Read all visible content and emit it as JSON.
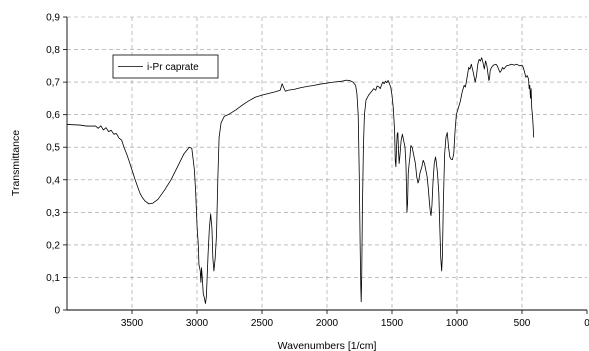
{
  "chart_data": {
    "type": "line",
    "xlabel": "Wavenumbers [1/cm]",
    "ylabel": "Transmittance",
    "xlim": [
      4000,
      0
    ],
    "ylim": [
      0,
      0.9
    ],
    "x_reversed": true,
    "grid": true,
    "legend_position": "top-left",
    "x_ticks": [
      {
        "value": 3500,
        "label": "3500"
      },
      {
        "value": 3000,
        "label": "3000"
      },
      {
        "value": 2500,
        "label": "2500"
      },
      {
        "value": 2000,
        "label": "2000"
      },
      {
        "value": 1500,
        "label": "1500"
      },
      {
        "value": 1000,
        "label": "1000"
      },
      {
        "value": 500,
        "label": "500"
      },
      {
        "value": 0,
        "label": "0"
      }
    ],
    "y_ticks": [
      {
        "value": 0,
        "label": "0"
      },
      {
        "value": 0.1,
        "label": "0,1"
      },
      {
        "value": 0.2,
        "label": "0,2"
      },
      {
        "value": 0.3,
        "label": "0,3"
      },
      {
        "value": 0.4,
        "label": "0,4"
      },
      {
        "value": 0.5,
        "label": "0,5"
      },
      {
        "value": 0.6,
        "label": "0,6"
      },
      {
        "value": 0.7,
        "label": "0,7"
      },
      {
        "value": 0.8,
        "label": "0,8"
      },
      {
        "value": 0.9,
        "label": "0,9"
      }
    ],
    "series": [
      {
        "name": "i-Pr caprate",
        "color": "#000000",
        "points": [
          [
            4000,
            0.57
          ],
          [
            3900,
            0.568
          ],
          [
            3850,
            0.565
          ],
          [
            3780,
            0.565
          ],
          [
            3760,
            0.558
          ],
          [
            3740,
            0.566
          ],
          [
            3720,
            0.553
          ],
          [
            3700,
            0.56
          ],
          [
            3680,
            0.548
          ],
          [
            3660,
            0.552
          ],
          [
            3640,
            0.54
          ],
          [
            3620,
            0.542
          ],
          [
            3600,
            0.528
          ],
          [
            3580,
            0.522
          ],
          [
            3560,
            0.498
          ],
          [
            3540,
            0.478
          ],
          [
            3520,
            0.455
          ],
          [
            3500,
            0.43
          ],
          [
            3480,
            0.405
          ],
          [
            3460,
            0.382
          ],
          [
            3440,
            0.36
          ],
          [
            3420,
            0.345
          ],
          [
            3400,
            0.335
          ],
          [
            3370,
            0.326
          ],
          [
            3340,
            0.328
          ],
          [
            3300,
            0.34
          ],
          [
            3250,
            0.368
          ],
          [
            3200,
            0.4
          ],
          [
            3150,
            0.44
          ],
          [
            3100,
            0.48
          ],
          [
            3060,
            0.5
          ],
          [
            3040,
            0.497
          ],
          [
            3020,
            0.43
          ],
          [
            3010,
            0.36
          ],
          [
            3000,
            0.26
          ],
          [
            2990,
            0.2
          ],
          [
            2985,
            0.14
          ],
          [
            2975,
            0.12
          ],
          [
            2970,
            0.085
          ],
          [
            2965,
            0.13
          ],
          [
            2958,
            0.09
          ],
          [
            2952,
            0.05
          ],
          [
            2945,
            0.04
          ],
          [
            2935,
            0.02
          ],
          [
            2928,
            0.04
          ],
          [
            2915,
            0.17
          ],
          [
            2905,
            0.25
          ],
          [
            2895,
            0.295
          ],
          [
            2885,
            0.25
          ],
          [
            2878,
            0.16
          ],
          [
            2870,
            0.12
          ],
          [
            2860,
            0.16
          ],
          [
            2850,
            0.23
          ],
          [
            2840,
            0.4
          ],
          [
            2830,
            0.53
          ],
          [
            2815,
            0.575
          ],
          [
            2790,
            0.595
          ],
          [
            2760,
            0.6
          ],
          [
            2700,
            0.615
          ],
          [
            2650,
            0.63
          ],
          [
            2600,
            0.643
          ],
          [
            2550,
            0.654
          ],
          [
            2500,
            0.66
          ],
          [
            2450,
            0.665
          ],
          [
            2400,
            0.67
          ],
          [
            2360,
            0.675
          ],
          [
            2345,
            0.695
          ],
          [
            2335,
            0.685
          ],
          [
            2320,
            0.672
          ],
          [
            2300,
            0.675
          ],
          [
            2250,
            0.678
          ],
          [
            2200,
            0.683
          ],
          [
            2150,
            0.687
          ],
          [
            2100,
            0.69
          ],
          [
            2050,
            0.694
          ],
          [
            2000,
            0.697
          ],
          [
            1950,
            0.7
          ],
          [
            1900,
            0.702
          ],
          [
            1870,
            0.704
          ],
          [
            1850,
            0.706
          ],
          [
            1820,
            0.704
          ],
          [
            1800,
            0.7
          ],
          [
            1780,
            0.69
          ],
          [
            1770,
            0.665
          ],
          [
            1760,
            0.6
          ],
          [
            1752,
            0.42
          ],
          [
            1745,
            0.2
          ],
          [
            1740,
            0.07
          ],
          [
            1737,
            0.025
          ],
          [
            1733,
            0.1
          ],
          [
            1728,
            0.3
          ],
          [
            1720,
            0.5
          ],
          [
            1712,
            0.6
          ],
          [
            1700,
            0.645
          ],
          [
            1680,
            0.66
          ],
          [
            1660,
            0.67
          ],
          [
            1640,
            0.68
          ],
          [
            1625,
            0.675
          ],
          [
            1615,
            0.688
          ],
          [
            1600,
            0.685
          ],
          [
            1590,
            0.68
          ],
          [
            1580,
            0.692
          ],
          [
            1570,
            0.7
          ],
          [
            1560,
            0.695
          ],
          [
            1550,
            0.703
          ],
          [
            1540,
            0.698
          ],
          [
            1530,
            0.705
          ],
          [
            1520,
            0.695
          ],
          [
            1510,
            0.685
          ],
          [
            1500,
            0.66
          ],
          [
            1490,
            0.62
          ],
          [
            1480,
            0.55
          ],
          [
            1475,
            0.46
          ],
          [
            1470,
            0.44
          ],
          [
            1465,
            0.5
          ],
          [
            1460,
            0.54
          ],
          [
            1455,
            0.545
          ],
          [
            1450,
            0.49
          ],
          [
            1445,
            0.45
          ],
          [
            1440,
            0.47
          ],
          [
            1430,
            0.52
          ],
          [
            1420,
            0.54
          ],
          [
            1410,
            0.52
          ],
          [
            1400,
            0.5
          ],
          [
            1393,
            0.45
          ],
          [
            1388,
            0.37
          ],
          [
            1385,
            0.3
          ],
          [
            1380,
            0.33
          ],
          [
            1375,
            0.42
          ],
          [
            1368,
            0.45
          ],
          [
            1362,
            0.47
          ],
          [
            1355,
            0.505
          ],
          [
            1345,
            0.5
          ],
          [
            1335,
            0.48
          ],
          [
            1320,
            0.45
          ],
          [
            1310,
            0.41
          ],
          [
            1300,
            0.39
          ],
          [
            1295,
            0.395
          ],
          [
            1285,
            0.42
          ],
          [
            1270,
            0.44
          ],
          [
            1260,
            0.46
          ],
          [
            1250,
            0.45
          ],
          [
            1240,
            0.43
          ],
          [
            1230,
            0.41
          ],
          [
            1220,
            0.37
          ],
          [
            1212,
            0.33
          ],
          [
            1205,
            0.3
          ],
          [
            1200,
            0.29
          ],
          [
            1193,
            0.32
          ],
          [
            1185,
            0.39
          ],
          [
            1175,
            0.45
          ],
          [
            1165,
            0.47
          ],
          [
            1158,
            0.45
          ],
          [
            1150,
            0.42
          ],
          [
            1140,
            0.36
          ],
          [
            1132,
            0.25
          ],
          [
            1125,
            0.16
          ],
          [
            1118,
            0.12
          ],
          [
            1112,
            0.17
          ],
          [
            1105,
            0.33
          ],
          [
            1095,
            0.48
          ],
          [
            1085,
            0.53
          ],
          [
            1075,
            0.545
          ],
          [
            1065,
            0.5
          ],
          [
            1055,
            0.47
          ],
          [
            1045,
            0.463
          ],
          [
            1035,
            0.462
          ],
          [
            1025,
            0.48
          ],
          [
            1015,
            0.55
          ],
          [
            1005,
            0.6
          ],
          [
            990,
            0.62
          ],
          [
            975,
            0.64
          ],
          [
            960,
            0.67
          ],
          [
            945,
            0.69
          ],
          [
            935,
            0.685
          ],
          [
            920,
            0.72
          ],
          [
            910,
            0.745
          ],
          [
            900,
            0.74
          ],
          [
            890,
            0.755
          ],
          [
            875,
            0.73
          ],
          [
            860,
            0.7
          ],
          [
            850,
            0.72
          ],
          [
            840,
            0.755
          ],
          [
            830,
            0.77
          ],
          [
            820,
            0.765
          ],
          [
            810,
            0.775
          ],
          [
            800,
            0.76
          ],
          [
            790,
            0.74
          ],
          [
            780,
            0.765
          ],
          [
            770,
            0.75
          ],
          [
            760,
            0.72
          ],
          [
            755,
            0.705
          ],
          [
            750,
            0.71
          ],
          [
            745,
            0.735
          ],
          [
            735,
            0.745
          ],
          [
            720,
            0.752
          ],
          [
            700,
            0.755
          ],
          [
            690,
            0.75
          ],
          [
            680,
            0.74
          ],
          [
            670,
            0.73
          ],
          [
            660,
            0.735
          ],
          [
            650,
            0.745
          ],
          [
            640,
            0.74
          ],
          [
            630,
            0.745
          ],
          [
            620,
            0.75
          ],
          [
            600,
            0.752
          ],
          [
            580,
            0.755
          ],
          [
            560,
            0.752
          ],
          [
            540,
            0.755
          ],
          [
            520,
            0.75
          ],
          [
            500,
            0.752
          ],
          [
            490,
            0.745
          ],
          [
            480,
            0.73
          ],
          [
            470,
            0.715
          ],
          [
            460,
            0.72
          ],
          [
            450,
            0.71
          ],
          [
            445,
            0.68
          ],
          [
            440,
            0.69
          ],
          [
            435,
            0.65
          ],
          [
            430,
            0.68
          ],
          [
            425,
            0.62
          ],
          [
            420,
            0.6
          ],
          [
            415,
            0.57
          ],
          [
            410,
            0.53
          ]
        ]
      }
    ]
  }
}
